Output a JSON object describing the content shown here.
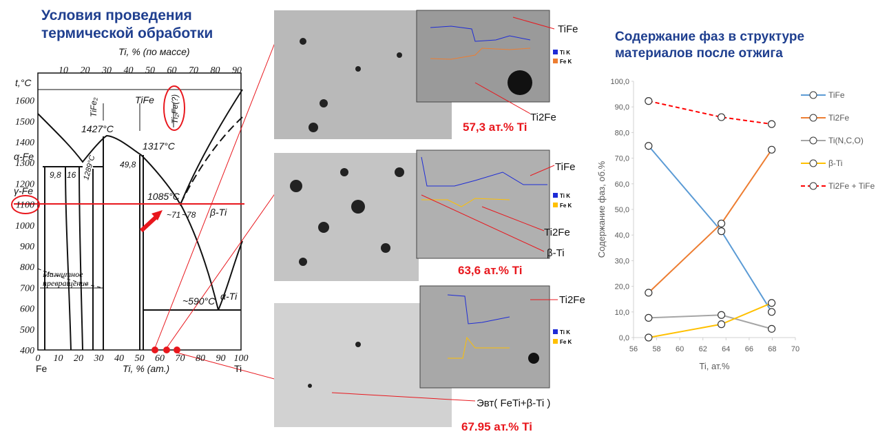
{
  "header": {
    "title": "Условия проведения термической обработки"
  },
  "phase_diagram": {
    "top_axis_title": "Ti, % (по массе)",
    "top_ticks": [
      "10",
      "20",
      "30",
      "40",
      "50",
      "60",
      "70",
      "80",
      "90"
    ],
    "left_axis_title": "t,°C",
    "left_ticks": [
      "400",
      "500",
      "600",
      "700",
      "800",
      "900",
      "1000",
      "1100",
      "1200",
      "1300",
      "1400",
      "1500",
      "1600"
    ],
    "bottom_ticks": [
      "0",
      "10",
      "20",
      "30",
      "40",
      "50",
      "60",
      "70",
      "80",
      "90",
      "100"
    ],
    "bottom_axis_title": "Ti, % (ат.)",
    "left_element": "Fe",
    "right_element": "Ti",
    "labels": [
      "TiFe₂",
      "TiFe",
      "Ti₂Fe(?)",
      "1427°C",
      "1317°C",
      "α-Fe",
      "γ-Fe",
      "9,8",
      "16",
      "1289°C",
      "49,8",
      "1085°C",
      "~71",
      "~78",
      "β-Ti",
      "Магнитное превращение",
      "~590°C",
      "α-Ti"
    ]
  },
  "micrographs": {
    "captions": [
      "57,3 ат.% Ti",
      "63,6 ат.% Ti",
      "67.95 ат.% Ti"
    ],
    "labels": [
      "TiFe",
      "Ti2Fe",
      "TiFe",
      "Ti2Fe",
      "β-Ti",
      "Ti2Fe",
      "Эвт( FeTi+β-Ti )"
    ],
    "legend": [
      "Ti K",
      "Fe K"
    ]
  },
  "chart_data": {
    "type": "line",
    "title": "Содержание фаз в структуре материалов после отжига",
    "x_label": "Ti, ат.%",
    "y_label": "Содержание фаз, об.%",
    "x": [
      57.3,
      63.6,
      67.95
    ],
    "series": [
      {
        "name": "TiFe",
        "color": "#5b9bd5",
        "values": [
          74.8,
          41.5,
          10.0
        ]
      },
      {
        "name": "Ti2Fe",
        "color": "#ed7d31",
        "values": [
          17.5,
          44.5,
          73.3
        ]
      },
      {
        "name": "Ti(N,C,O)",
        "color": "#a5a5a5",
        "values": [
          7.7,
          8.8,
          3.4
        ]
      },
      {
        "name": "β-Ti",
        "color": "#ffc000",
        "values": [
          0,
          5.2,
          13.5
        ]
      },
      {
        "name": "Ti2Fe + TiFe",
        "color": "#ff0000",
        "dashed": true,
        "values": [
          92.3,
          86.0,
          83.3
        ]
      }
    ],
    "xlim": [
      56,
      70
    ],
    "xticks": [
      56,
      58,
      60,
      62,
      64,
      66,
      68,
      70
    ],
    "ylim": [
      0,
      100
    ],
    "yticks": [
      {
        "value": 0,
        "label": "0,0"
      },
      {
        "value": 10,
        "label": "10,0"
      },
      {
        "value": 20,
        "label": "20,0"
      },
      {
        "value": 30,
        "label": "30,0"
      },
      {
        "value": 40,
        "label": "40,0"
      },
      {
        "value": 50,
        "label": "50,0"
      },
      {
        "value": 60,
        "label": "60,0"
      },
      {
        "value": 70,
        "label": "70,0"
      },
      {
        "value": 80,
        "label": "80,0"
      },
      {
        "value": 90,
        "label": "90,0"
      },
      {
        "value": 100,
        "label": "100,0"
      }
    ],
    "grid": false,
    "legend": "right"
  }
}
